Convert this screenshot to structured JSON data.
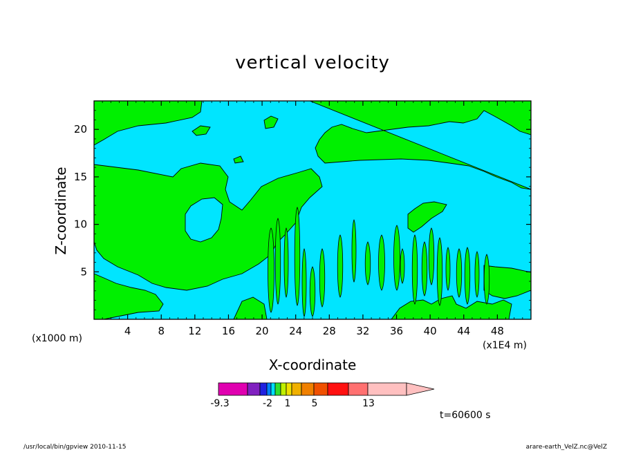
{
  "chart_data": {
    "type": "heatmap",
    "title": "vertical velocity",
    "xlabel": "X-coordinate",
    "ylabel": "Z-coordinate",
    "x_multiplier": "(x1E4 m)",
    "y_multiplier": "(x1000 m)",
    "xlim": [
      0,
      52
    ],
    "ylim": [
      0,
      23
    ],
    "x_ticks": [
      4,
      8,
      12,
      16,
      20,
      24,
      28,
      32,
      36,
      40,
      44,
      48
    ],
    "y_ticks": [
      5,
      10,
      15,
      20
    ],
    "legend": {
      "levels": [
        -9.3,
        -2,
        1,
        5,
        13
      ],
      "labels": [
        "-9.3",
        "-2",
        "1",
        "5",
        "13"
      ],
      "colors": [
        "#e000b0",
        "#8020c0",
        "#2020e0",
        "#0080ff",
        "#00e0ff",
        "#30e030",
        "#c0f000",
        "#f0e000",
        "#f0b000",
        "#f08000",
        "#f05000",
        "#ff1010",
        "#ff7070",
        "#ffc0c0"
      ]
    },
    "region_colors": {
      "background": "#00e5ff",
      "positive": "#00f000"
    },
    "time_label": "t=60600 s"
  },
  "footer": {
    "left": "/usr/local/bin/gpview  2010-11-15",
    "right": "arare-earth_VelZ.nc@VelZ"
  }
}
